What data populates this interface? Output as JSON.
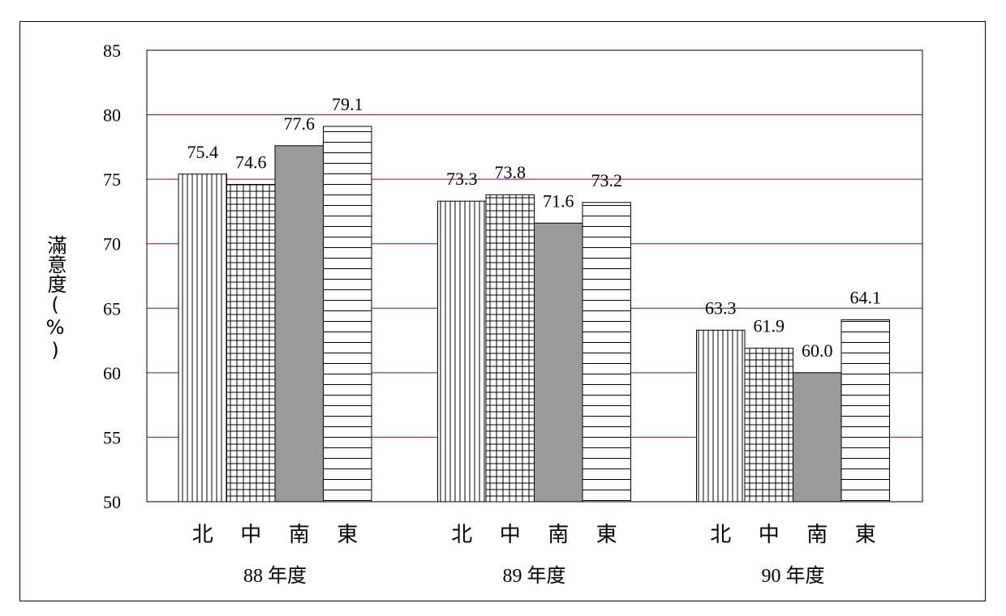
{
  "chart_data": {
    "type": "bar",
    "ylabel": "滿意度(%)",
    "ylim": [
      50,
      85
    ],
    "yticks": [
      "50",
      "55",
      "60",
      "65",
      "70",
      "75",
      "80",
      "85"
    ],
    "grid": true,
    "grid_color": "#800080",
    "groups": [
      {
        "label": "88 年度",
        "categories": [
          "北",
          "中",
          "南",
          "東"
        ],
        "values": [
          75.4,
          74.6,
          77.6,
          79.1
        ],
        "value_labels": [
          "75.4",
          "74.6",
          "77.6",
          "79.1"
        ]
      },
      {
        "label": "89 年度",
        "categories": [
          "北",
          "中",
          "南",
          "東"
        ],
        "values": [
          73.3,
          73.8,
          71.6,
          73.2
        ],
        "value_labels": [
          "73.3",
          "73.8",
          "71.6",
          "73.2"
        ]
      },
      {
        "label": "90 年度",
        "categories": [
          "北",
          "中",
          "南",
          "東"
        ],
        "values": [
          63.3,
          61.9,
          60.0,
          64.1
        ],
        "value_labels": [
          "63.3",
          "61.9",
          "60.0",
          "64.1"
        ]
      }
    ],
    "bar_patterns": [
      "vertical-lines",
      "grid",
      "solid-gray",
      "horizontal-lines"
    ]
  }
}
